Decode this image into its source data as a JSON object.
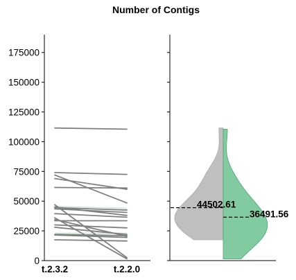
{
  "chart_data": {
    "type": "slope-and-split-violin",
    "title": "Number of Contigs",
    "ylim": [
      0,
      190000
    ],
    "yticks": [
      "0",
      "25000",
      "50000",
      "75000",
      "100000",
      "125000",
      "150000",
      "175000"
    ],
    "categories": [
      "t.2.3.2",
      "t.2.2.0"
    ],
    "colors": {
      "t.2.3.2": "#b4b4b4",
      "t.2.2.0": "#66bf8c",
      "line": "#7f7f7f",
      "light_line": "#c9e6d5",
      "mean_line": "#000000"
    },
    "pairs": [
      [
        111500,
        110500
      ],
      [
        74000,
        72500
      ],
      [
        72000,
        48500
      ],
      [
        69000,
        60000
      ],
      [
        61500,
        61000
      ],
      [
        47000,
        2500
      ],
      [
        45000,
        38000
      ],
      [
        44500,
        42500
      ],
      [
        43500,
        40500
      ],
      [
        39500,
        36500
      ],
      [
        34500,
        20500
      ],
      [
        33500,
        33500
      ],
      [
        30000,
        27500
      ],
      [
        28000,
        22000
      ],
      [
        22000,
        21000
      ],
      [
        21500,
        19500
      ],
      [
        17500,
        16500
      ],
      [
        36000,
        1500
      ]
    ],
    "light_pairs": [
      [
        45500,
        44000
      ],
      [
        23000,
        23000
      ]
    ],
    "means": {
      "t.2.3.2": 44502.61,
      "t.2.2.0": 36491.56
    },
    "mean_labels": [
      "44502.61",
      "36491.56"
    ]
  }
}
